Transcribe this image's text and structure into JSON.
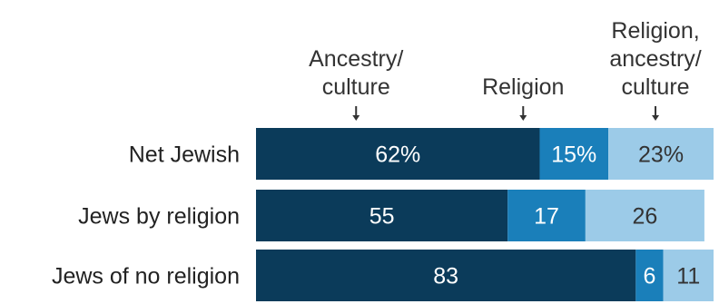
{
  "chart_data": {
    "type": "bar",
    "orientation": "horizontal",
    "stacked": true,
    "categories": [
      "Net Jewish",
      "Jews by religion",
      "Jews of no religion"
    ],
    "series": [
      {
        "name": "Ancestry/ culture",
        "name_lines": [
          "Ancestry/",
          "culture"
        ],
        "color": "#0b3b5a",
        "values": [
          62,
          55,
          83
        ],
        "labels": [
          "62%",
          "55",
          "83"
        ]
      },
      {
        "name": "Religion",
        "name_lines": [
          "Religion"
        ],
        "color": "#1a7fba",
        "values": [
          15,
          17,
          6
        ],
        "labels": [
          "15%",
          "17",
          "6"
        ]
      },
      {
        "name": "Religion, ancestry/ culture",
        "name_lines": [
          "Religion,",
          "ancestry/",
          "culture"
        ],
        "color": "#9ccbe8",
        "values": [
          23,
          26,
          11
        ],
        "labels": [
          "23%",
          "26",
          "11"
        ]
      }
    ],
    "xlim": [
      0,
      100
    ],
    "grid": false,
    "legend": "top, labels with arrows above bar segments"
  },
  "colors": {
    "label_on_dark": "#ffffff",
    "label_on_light": "#333333",
    "arrow": "#333333"
  }
}
